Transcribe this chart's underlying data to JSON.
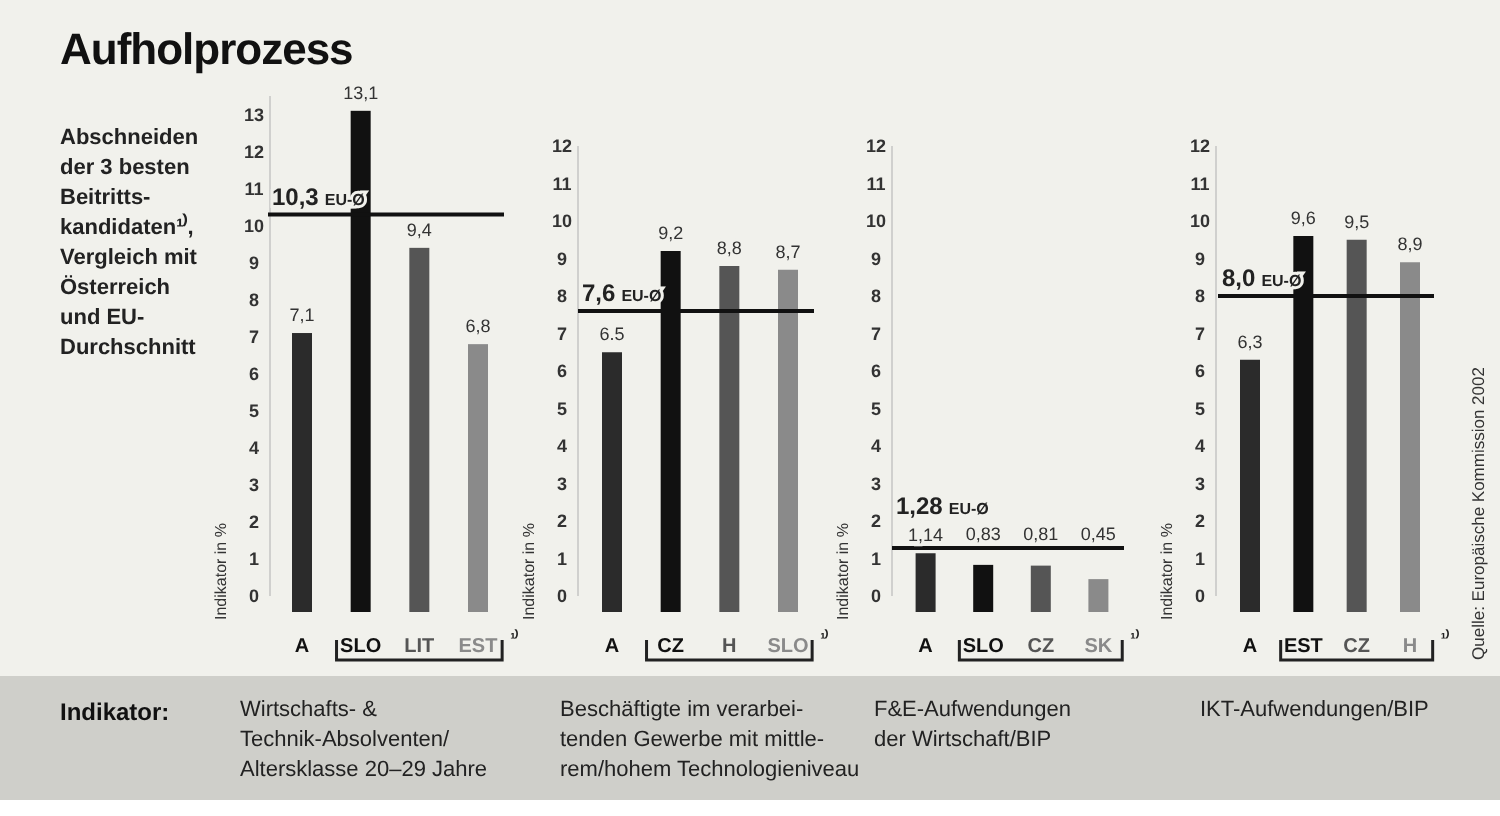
{
  "chart_data": [
    {
      "type": "bar",
      "title": "Aufholprozess",
      "subtitle": "Abschneiden\nder 3 besten\nBeitritts-\nkandidaten¹⁾,\nVergleich mit\nÖsterreich\nund EU-\nDurchschnitt",
      "xlabel": "Wirtschafts- &\nTechnik-Absolventen/\nAltersklasse 20–29 Jahre",
      "ylabel": "Indikator in %",
      "categories": [
        "A",
        "SLO",
        "LIT",
        "EST"
      ],
      "values": [
        7.1,
        13.1,
        9.4,
        6.8
      ],
      "colors": [
        "#2b2b2b",
        "#111111",
        "#555555",
        "#8a8a8a"
      ],
      "value_labels": [
        "7,1",
        "13,1",
        "9,4",
        "6,8"
      ],
      "ylim": [
        0,
        13.5
      ],
      "yticks": [
        0,
        1,
        2,
        3,
        4,
        5,
        6,
        7,
        8,
        9,
        10,
        11,
        12,
        13
      ],
      "ref_lines": [
        {
          "axis": "y",
          "value": 10.3,
          "label": "10,3 EU-Ø",
          "color": "#111111"
        }
      ],
      "annotations": [
        "¹⁾",
        "Indikator:"
      ]
    },
    {
      "type": "bar",
      "xlabel": "Beschäftigte im verarbei-\ntenden Gewerbe mit mittle-\nrem/hohem Technologieniveau",
      "ylabel": "Indikator in %",
      "categories": [
        "A",
        "CZ",
        "H",
        "SLO"
      ],
      "values": [
        6.5,
        9.2,
        8.8,
        8.7
      ],
      "colors": [
        "#2b2b2b",
        "#111111",
        "#555555",
        "#8a8a8a"
      ],
      "value_labels": [
        "6.5",
        "9,2",
        "8,8",
        "8,7"
      ],
      "ylim": [
        0,
        12
      ],
      "yticks": [
        0,
        1,
        2,
        3,
        4,
        5,
        6,
        7,
        8,
        9,
        10,
        11,
        12
      ],
      "ref_lines": [
        {
          "axis": "y",
          "value": 7.6,
          "label": "7,6 EU-Ø",
          "color": "#111111"
        }
      ],
      "annotations": [
        "¹⁾"
      ]
    },
    {
      "type": "bar",
      "xlabel": "F&E-Aufwendungen\nder Wirtschaft/BIP",
      "ylabel": "Indikator in %",
      "categories": [
        "A",
        "SLO",
        "CZ",
        "SK"
      ],
      "values": [
        1.14,
        0.83,
        0.81,
        0.45
      ],
      "colors": [
        "#2b2b2b",
        "#111111",
        "#555555",
        "#8a8a8a"
      ],
      "value_labels": [
        "1,14",
        "0,83",
        "0,81",
        "0,45"
      ],
      "ylim": [
        0,
        12
      ],
      "yticks": [
        0,
        1,
        2,
        3,
        4,
        5,
        6,
        7,
        8,
        9,
        10,
        11,
        12
      ],
      "ref_lines": [
        {
          "axis": "y",
          "value": 1.28,
          "label": "1,28 EU-Ø",
          "color": "#111111"
        }
      ],
      "annotations": [
        "¹⁾"
      ]
    },
    {
      "type": "bar",
      "xlabel": "IKT-Aufwendungen/BIP",
      "ylabel": "Indikator in %",
      "categories": [
        "A",
        "EST",
        "CZ",
        "H"
      ],
      "values": [
        6.3,
        9.6,
        9.5,
        8.9
      ],
      "colors": [
        "#2b2b2b",
        "#111111",
        "#555555",
        "#8a8a8a"
      ],
      "value_labels": [
        "6,3",
        "9,6",
        "9,5",
        "8,9"
      ],
      "ylim": [
        0,
        12
      ],
      "yticks": [
        0,
        1,
        2,
        3,
        4,
        5,
        6,
        7,
        8,
        9,
        10,
        11,
        12
      ],
      "ref_lines": [
        {
          "axis": "y",
          "value": 8.0,
          "label": "8,0 EU-Ø",
          "color": "#111111"
        }
      ],
      "annotations": [
        "¹⁾",
        "Quelle: Europäische Kommission 2002"
      ]
    }
  ]
}
